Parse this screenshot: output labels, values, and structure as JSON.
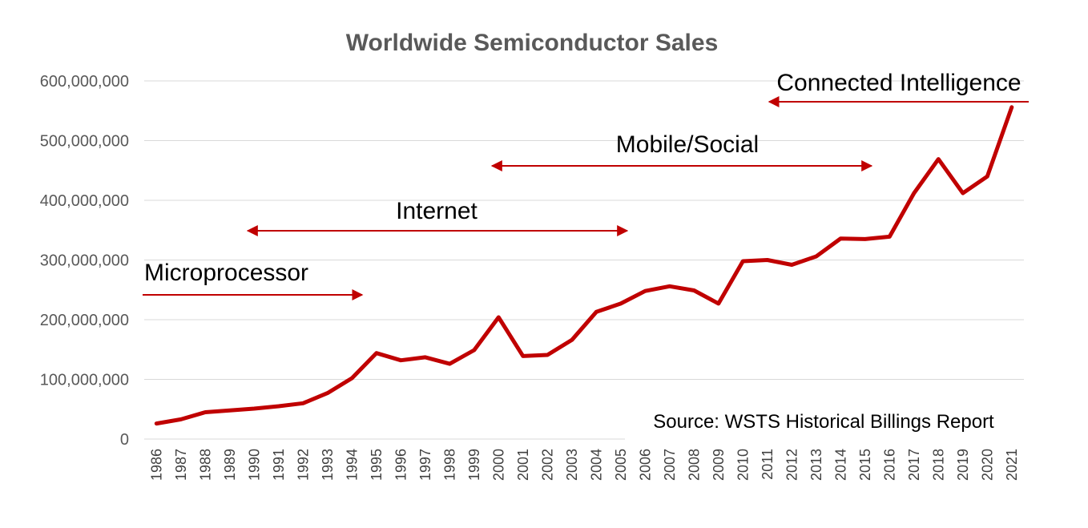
{
  "chart_data": {
    "type": "line",
    "title": "Worldwide Semiconductor Sales",
    "xlabel": "",
    "ylabel": "",
    "ylim": [
      0,
      600000000
    ],
    "y_ticks": [
      "0",
      "100,000,000",
      "200,000,000",
      "300,000,000",
      "400,000,000",
      "500,000,000",
      "600,000,000"
    ],
    "x": [
      "1986",
      "1987",
      "1988",
      "1989",
      "1990",
      "1991",
      "1992",
      "1993",
      "1994",
      "1995",
      "1996",
      "1997",
      "1998",
      "1999",
      "2000",
      "2001",
      "2002",
      "2003",
      "2004",
      "2005",
      "2006",
      "2007",
      "2008",
      "2009",
      "2010",
      "2011",
      "2012",
      "2013",
      "2014",
      "2015",
      "2016",
      "2017",
      "2018",
      "2019",
      "2020",
      "2021"
    ],
    "series": [
      {
        "values": [
          26000000,
          33000000,
          45000000,
          48000000,
          51000000,
          55000000,
          60000000,
          77000000,
          102000000,
          144000000,
          132000000,
          137000000,
          126000000,
          149000000,
          204000000,
          139000000,
          141000000,
          166000000,
          213000000,
          227000000,
          248000000,
          256000000,
          249000000,
          227000000,
          298000000,
          300000000,
          292000000,
          306000000,
          336000000,
          335000000,
          339000000,
          412000000,
          469000000,
          412000000,
          440000000,
          556000000
        ],
        "color": "#c00000"
      }
    ],
    "grid": true,
    "annotations": [
      {
        "label": "Microprocessor",
        "from": "1986",
        "to": "1994",
        "direction": "right"
      },
      {
        "label": "Internet",
        "from": "1990",
        "to": "2005",
        "direction": "both"
      },
      {
        "label": "Mobile/Social",
        "from": "2000",
        "to": "2015",
        "direction": "both"
      },
      {
        "label": "Connected Intelligence",
        "from": "2011",
        "to": "2021",
        "direction": "left"
      }
    ],
    "source_note": "Source: WSTS Historical Billings Report",
    "annotation_color": "#c00000"
  }
}
